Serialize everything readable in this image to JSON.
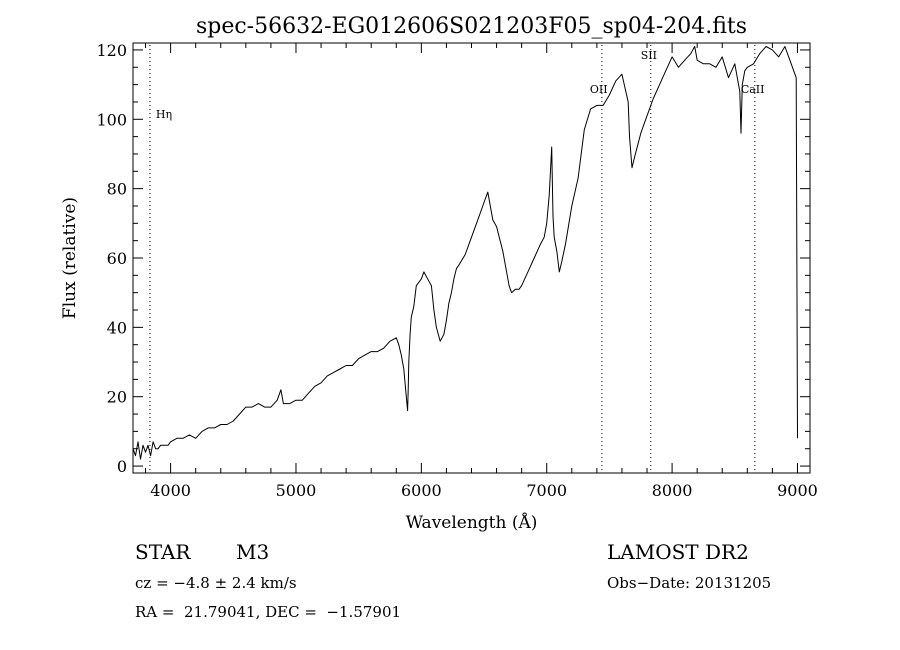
{
  "chart_data": {
    "type": "line",
    "title": "spec-56632-EG012606S021203F05_sp04-204.fits",
    "xlabel": "Wavelength (Å)",
    "ylabel": "Flux (relative)",
    "xlim": [
      3700,
      9100
    ],
    "ylim": [
      -2,
      122
    ],
    "xticks": [
      4000,
      5000,
      6000,
      7000,
      8000,
      9000
    ],
    "yticks": [
      0,
      20,
      40,
      60,
      80,
      100,
      120
    ],
    "grid": false,
    "line_color": "#000000",
    "series": [
      {
        "x": [
          3700,
          3720,
          3740,
          3760,
          3780,
          3800,
          3820,
          3840,
          3860,
          3880,
          3900,
          3920,
          3950,
          3980,
          4000,
          4050,
          4100,
          4150,
          4200,
          4250,
          4300,
          4350,
          4400,
          4450,
          4500,
          4550,
          4600,
          4650,
          4700,
          4750,
          4800,
          4850,
          4880,
          4900,
          4950,
          5000,
          5050,
          5100,
          5150,
          5200,
          5250,
          5300,
          5350,
          5400,
          5450,
          5500,
          5550,
          5600,
          5650,
          5700,
          5750,
          5800,
          5820,
          5840,
          5860,
          5880,
          5890,
          5895,
          5900,
          5910,
          5920,
          5940,
          5960,
          5980,
          6000,
          6020,
          6050,
          6080,
          6100,
          6120,
          6150,
          6180,
          6200,
          6220,
          6240,
          6260,
          6280,
          6300,
          6350,
          6400,
          6450,
          6500,
          6530,
          6550,
          6570,
          6600,
          6650,
          6700,
          6720,
          6750,
          6780,
          6800,
          6850,
          6900,
          6950,
          6980,
          7000,
          7020,
          7040,
          7050,
          7060,
          7080,
          7100,
          7120,
          7150,
          7200,
          7250,
          7300,
          7350,
          7400,
          7450,
          7500,
          7550,
          7600,
          7650,
          7660,
          7680,
          7700,
          7750,
          7800,
          7850,
          7900,
          7950,
          8000,
          8050,
          8100,
          8150,
          8180,
          8200,
          8250,
          8300,
          8350,
          8400,
          8450,
          8500,
          8520,
          8540,
          8550,
          8560,
          8580,
          8600,
          8650,
          8700,
          8750,
          8800,
          8850,
          8900,
          8950,
          8990,
          9000
        ],
        "y": [
          5,
          3,
          7,
          2,
          6,
          4,
          6,
          3,
          7,
          5,
          5,
          6,
          6,
          6,
          7,
          8,
          8,
          9,
          8,
          10,
          11,
          11,
          12,
          12,
          13,
          15,
          17,
          17,
          18,
          17,
          17,
          19,
          22,
          18,
          18,
          19,
          19,
          21,
          23,
          24,
          26,
          27,
          28,
          29,
          29,
          31,
          32,
          33,
          33,
          34,
          36,
          37,
          35,
          32,
          28,
          20,
          16,
          22,
          30,
          38,
          43,
          46,
          52,
          53,
          54,
          56,
          54,
          52,
          45,
          40,
          36,
          38,
          42,
          47,
          50,
          54,
          57,
          58,
          61,
          66,
          71,
          76,
          79,
          75,
          71,
          69,
          62,
          52,
          50,
          51,
          51,
          52,
          56,
          60,
          64,
          66,
          70,
          78,
          92,
          72,
          66,
          62,
          56,
          59,
          64,
          75,
          83,
          97,
          103,
          104,
          104,
          107,
          111,
          113,
          105,
          95,
          86,
          89,
          96,
          101,
          106,
          110,
          114,
          118,
          115,
          117,
          119,
          121,
          117,
          116,
          116,
          115,
          118,
          112,
          116,
          112,
          108,
          96,
          110,
          114,
          115,
          116,
          119,
          121,
          120,
          118,
          121,
          116,
          112,
          8
        ]
      }
    ],
    "annotations": [
      {
        "label": "Hη",
        "x": 3835
      },
      {
        "label": "OII",
        "x": 7440
      },
      {
        "label": "SII",
        "x": 7830
      },
      {
        "label": "CaII",
        "x": 8660
      }
    ]
  },
  "info": {
    "class": "STAR",
    "subclass": "M3",
    "survey": "LAMOST DR2",
    "cz": "cz = −4.8 ± 2.4 km/s",
    "obs_date": "Obs−Date: 20131205",
    "coords": "RA =  21.79041, DEC =  −1.57901"
  }
}
